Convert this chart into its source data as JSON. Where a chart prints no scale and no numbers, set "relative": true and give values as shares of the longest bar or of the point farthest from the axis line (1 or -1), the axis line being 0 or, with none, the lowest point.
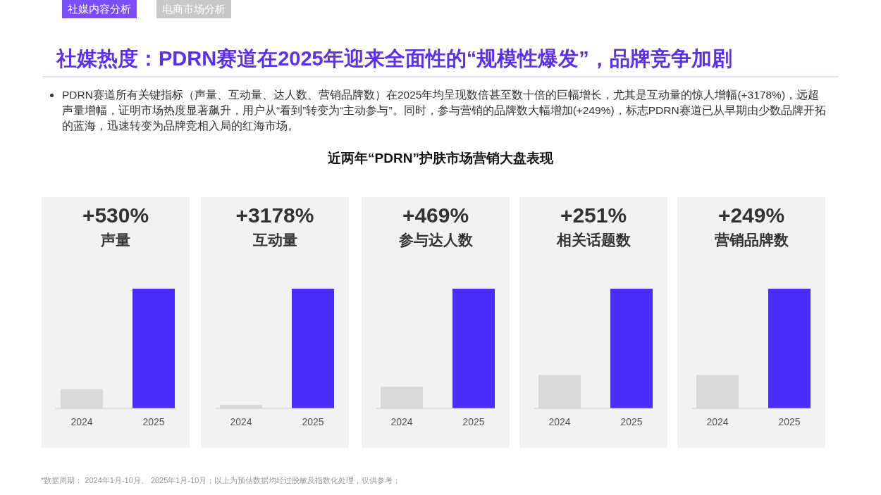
{
  "chart_data": [
    {
      "type": "bar",
      "title": "+530%",
      "subtitle": "声量",
      "categories": [
        "2024",
        "2025"
      ],
      "values": [
        0.16,
        1
      ],
      "colors": [
        "#d9d9d9",
        "#4b2dfb"
      ],
      "relative": true,
      "annotations": [
        "社媒内容分析",
        "电商市场分析",
        "社媒热度：PDRN赛道在2025年迎来全面性的“规模性爆发”，品牌竞争加剧",
        "PDRN赛道所有关键指标（声量、互动量、达人数、营销品牌数）在2025年均呈现数倍甚至数十倍的巨幅增长，尤其是互动量的惊人增幅(+3178%)，远超声量增幅，证明市场热度显著飙升，用户从“看到”转变为“主动参与”。同时，参与营销的品牌数大幅增加(+249%)，标志PDRN赛道已从早期由少数品牌开拓的蓝海，迅速转变为品牌竞相入局的红海市场。",
        "近两年“PDRN”护肤市场营销大盘表现",
        "*数据周期： 2024年1月-10月、 2025年1月-10月；以上为预估数据均经过脱敏及指数化处理，仅供参考；"
      ]
    },
    {
      "type": "bar",
      "title": "+3178%",
      "subtitle": "互动量",
      "categories": [
        "2024",
        "2025"
      ],
      "values": [
        0.03,
        1
      ],
      "colors": [
        "#d9d9d9",
        "#4b2dfb"
      ],
      "relative": true
    },
    {
      "type": "bar",
      "title": "+469%",
      "subtitle": "参与达人数",
      "categories": [
        "2024",
        "2025"
      ],
      "values": [
        0.18,
        1
      ],
      "colors": [
        "#d9d9d9",
        "#4b2dfb"
      ],
      "relative": true
    },
    {
      "type": "bar",
      "title": "+251%",
      "subtitle": "相关话题数",
      "categories": [
        "2024",
        "2025"
      ],
      "values": [
        0.28,
        1
      ],
      "colors": [
        "#d9d9d9",
        "#4b2dfb"
      ],
      "relative": true
    },
    {
      "type": "bar",
      "title": "+249%",
      "subtitle": "营销品牌数",
      "categories": [
        "2024",
        "2025"
      ],
      "values": [
        0.28,
        1
      ],
      "colors": [
        "#d9d9d9",
        "#4b2dfb"
      ],
      "relative": true
    }
  ]
}
